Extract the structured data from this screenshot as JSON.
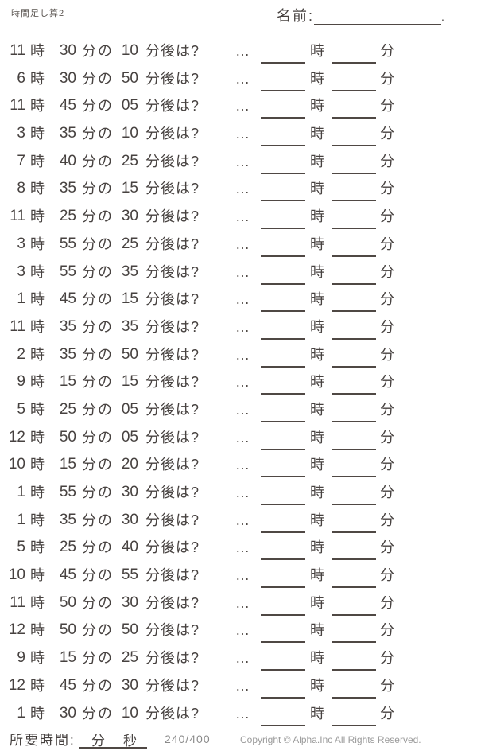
{
  "header": {
    "title": "時間足し算2",
    "name_label": "名前:",
    "name_period": "."
  },
  "labels": {
    "hour_unit": "時",
    "minute_no": "分の",
    "after_question": "分後は?",
    "ellipsis": "…",
    "answer_hour_unit": "時",
    "answer_minute_unit": "分"
  },
  "problems": [
    {
      "hour": "11",
      "minute": "30",
      "delta": "10"
    },
    {
      "hour": "6",
      "minute": "30",
      "delta": "50"
    },
    {
      "hour": "11",
      "minute": "45",
      "delta": "05"
    },
    {
      "hour": "3",
      "minute": "35",
      "delta": "10"
    },
    {
      "hour": "7",
      "minute": "40",
      "delta": "25"
    },
    {
      "hour": "8",
      "minute": "35",
      "delta": "15"
    },
    {
      "hour": "11",
      "minute": "25",
      "delta": "30"
    },
    {
      "hour": "3",
      "minute": "55",
      "delta": "25"
    },
    {
      "hour": "3",
      "minute": "55",
      "delta": "35"
    },
    {
      "hour": "1",
      "minute": "45",
      "delta": "15"
    },
    {
      "hour": "11",
      "minute": "35",
      "delta": "35"
    },
    {
      "hour": "2",
      "minute": "35",
      "delta": "50"
    },
    {
      "hour": "9",
      "minute": "15",
      "delta": "15"
    },
    {
      "hour": "5",
      "minute": "25",
      "delta": "05"
    },
    {
      "hour": "12",
      "minute": "50",
      "delta": "05"
    },
    {
      "hour": "10",
      "minute": "15",
      "delta": "20"
    },
    {
      "hour": "1",
      "minute": "55",
      "delta": "30"
    },
    {
      "hour": "1",
      "minute": "35",
      "delta": "30"
    },
    {
      "hour": "5",
      "minute": "25",
      "delta": "40"
    },
    {
      "hour": "10",
      "minute": "45",
      "delta": "55"
    },
    {
      "hour": "11",
      "minute": "50",
      "delta": "30"
    },
    {
      "hour": "12",
      "minute": "50",
      "delta": "50"
    },
    {
      "hour": "9",
      "minute": "15",
      "delta": "25"
    },
    {
      "hour": "12",
      "minute": "45",
      "delta": "30"
    },
    {
      "hour": "1",
      "minute": "30",
      "delta": "10"
    }
  ],
  "footer": {
    "time_label": "所要時間:",
    "minute_unit": "分",
    "second_unit": "秒",
    "progress": "240/400",
    "copyright": "Copyright ©  Alpha.Inc All Rights Reserved."
  },
  "colors": {
    "text": "#474240",
    "line": "#4f4844",
    "muted": "#9b9b9b"
  }
}
